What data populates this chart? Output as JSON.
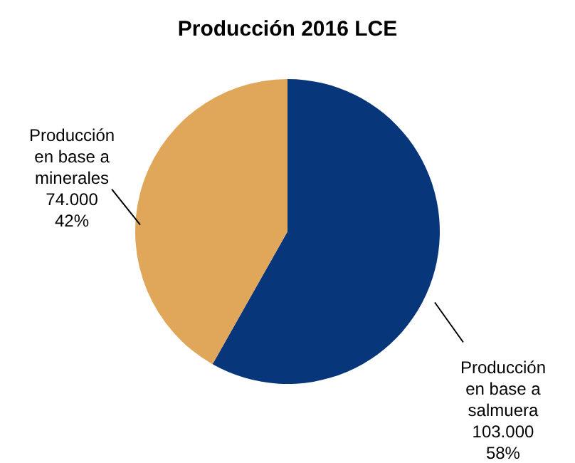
{
  "chart_data": {
    "type": "pie",
    "title": "Producción 2016 LCE",
    "categories": [
      "Producción en base a salmuera",
      "Producción en base a minerales"
    ],
    "values": [
      103000,
      74000
    ],
    "colors": [
      "#08367a",
      "#e0a75a"
    ],
    "value_labels": [
      "103.000\n58%",
      "74.000\n42%"
    ]
  }
}
